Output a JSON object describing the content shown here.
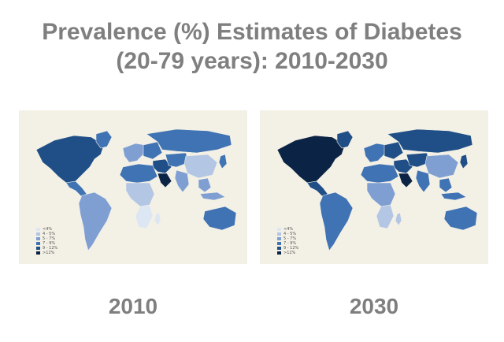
{
  "title": {
    "line1": "Prevalence (%) Estimates of Diabetes",
    "line2": "(20-79 years): 2010-2030"
  },
  "legend": [
    {
      "label": "<4%",
      "color": "#dde6f3"
    },
    {
      "label": "4 - 5%",
      "color": "#b3c6e4"
    },
    {
      "label": "5 - 7%",
      "color": "#7f9fd3"
    },
    {
      "label": "7 - 9%",
      "color": "#3f73b3"
    },
    {
      "label": "9 - 12%",
      "color": "#1f4f86"
    },
    {
      "label": ">12%",
      "color": "#0b2345"
    }
  ],
  "maps": [
    {
      "year_label": "2010"
    },
    {
      "year_label": "2030"
    }
  ],
  "region_colors": {
    "2010": {
      "north_america": "#1f4f86",
      "greenland": "#3f73b3",
      "central_america": "#3f73b3",
      "south_america": "#7f9fd3",
      "europe_west": "#7f9fd3",
      "europe_east": "#3f73b3",
      "russia": "#3f73b3",
      "middle_east": "#1f4f86",
      "arabia": "#0b2345",
      "africa_north": "#3f73b3",
      "africa_central": "#b3c6e4",
      "africa_south": "#dde6f3",
      "central_asia": "#3f73b3",
      "china": "#b3c6e4",
      "india": "#7f9fd3",
      "southeast_asia": "#7f9fd3",
      "japan": "#3f73b3",
      "indonesia": "#7f9fd3",
      "australia": "#3f73b3",
      "madagascar": "#dde6f3"
    },
    "2030": {
      "north_america": "#0b2345",
      "greenland": "#1f4f86",
      "central_america": "#1f4f86",
      "south_america": "#3f73b3",
      "europe_west": "#3f73b3",
      "europe_east": "#1f4f86",
      "russia": "#1f4f86",
      "middle_east": "#1f4f86",
      "arabia": "#0b2345",
      "africa_north": "#3f73b3",
      "africa_central": "#7f9fd3",
      "africa_south": "#b3c6e4",
      "central_asia": "#1f4f86",
      "china": "#7f9fd3",
      "india": "#3f73b3",
      "southeast_asia": "#3f73b3",
      "japan": "#1f4f86",
      "indonesia": "#3f73b3",
      "australia": "#3f73b3",
      "madagascar": "#b3c6e4"
    }
  }
}
